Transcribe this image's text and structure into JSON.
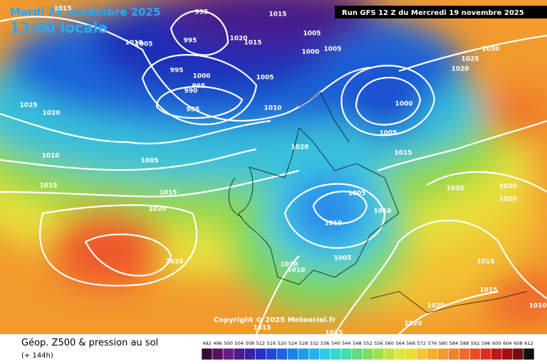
{
  "header": {
    "date": "Mardi 25 novembre 2025",
    "time": "13:00 locale",
    "run": "Run GFS 12 Z du Mercredi 19 novembre 2025"
  },
  "footer": {
    "title": "Géop. Z500 & pression au sol",
    "lead": "(+ 144h)",
    "copyright": "Copyright © 2025 Meteociel.fr"
  },
  "isobar_labels": [
    1015,
    1015,
    1005,
    995,
    1020,
    1015,
    995,
    1005,
    1010,
    995,
    1000,
    995,
    990,
    985,
    1005,
    1010,
    1000,
    1005,
    1000,
    1005,
    1025,
    1020,
    1030,
    1025,
    1020,
    1010,
    1005,
    1015,
    1015,
    1020,
    1020,
    1015,
    1020,
    1020,
    1020,
    1005,
    1010,
    1010,
    1005,
    1010,
    1010,
    1025,
    1015,
    1015,
    1020,
    1020,
    1015,
    1015,
    1010
  ],
  "scale_labels": [
    492,
    496,
    500,
    504,
    508,
    512,
    516,
    520,
    524,
    528,
    532,
    536,
    540,
    544,
    548,
    552,
    556,
    560,
    564,
    568,
    572,
    576,
    580,
    584,
    588,
    592,
    596,
    600,
    604,
    608,
    612
  ]
}
